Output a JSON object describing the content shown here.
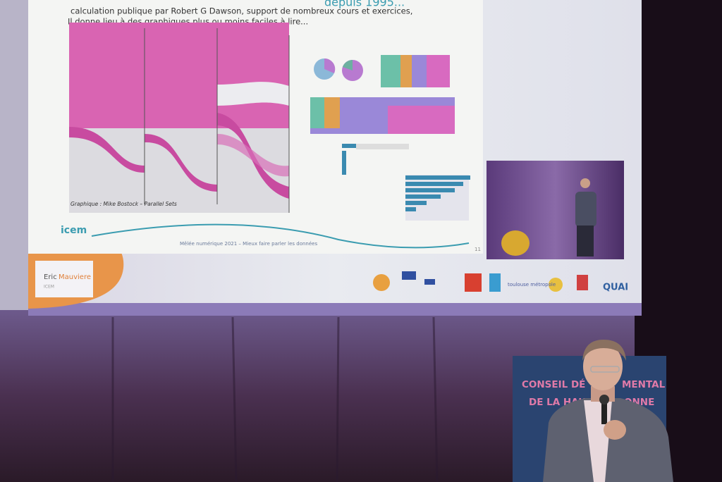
{
  "slide": {
    "heading_fragment": "depuis 1995...",
    "line1": "calculation publique par Robert G Dawson, support de nombreux cours et exercices,",
    "line2": "Il donne lieu à des graphiques plus ou moins faciles à lire...",
    "credit": "Graphique : Mike Bostock – Parallel Sets",
    "footer": "Mêlée numérique 2021 – Mieux faire parler les données",
    "page_number": "11",
    "logo": "icem"
  },
  "speaker_card": {
    "first": "Eric",
    "last": "Mauviere",
    "org": "ICEM"
  },
  "sponsors": [
    "toulouse métropole",
    "QUAI"
  ],
  "banner": {
    "line1_left": "CONSEIL DÉ",
    "line1_right": "MENTAL",
    "line2_left": "DE LA HAU",
    "line2_right": "ONNE"
  }
}
